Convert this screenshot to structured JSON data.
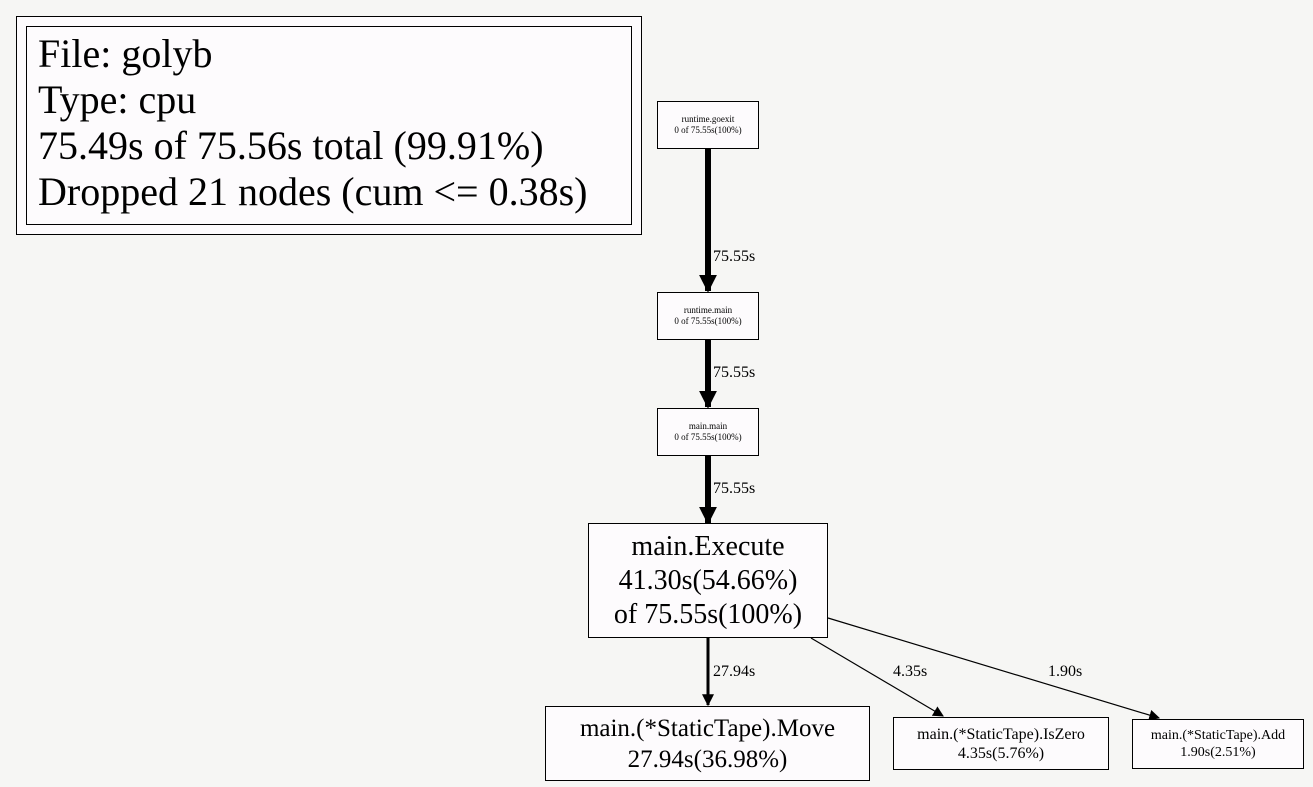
{
  "legend": {
    "file": "File: golyb",
    "type": "Type: cpu",
    "total": "75.49s of 75.56s total (99.91%)",
    "dropped": "Dropped 21 nodes (cum <= 0.38s)"
  },
  "nodes": {
    "goexit": {
      "name": "runtime.goexit",
      "stats": "0 of 75.55s(100%)"
    },
    "runtime_main": {
      "name": "runtime.main",
      "stats": "0 of 75.55s(100%)"
    },
    "main_main": {
      "name": "main.main",
      "stats": "0 of 75.55s(100%)"
    },
    "execute": {
      "name": "main.Execute",
      "flat": "41.30s(54.66%)",
      "cum": "of 75.55s(100%)"
    },
    "move": {
      "name": "main.(*StaticTape).Move",
      "flat": "27.94s(36.98%)"
    },
    "iszero": {
      "name": "main.(*StaticTape).IsZero",
      "flat": "4.35s(5.76%)"
    },
    "add": {
      "name": "main.(*StaticTape).Add",
      "flat": "1.90s(2.51%)"
    }
  },
  "edges": {
    "goexit_to_runtime_main": "75.55s",
    "runtime_main_to_main_main": "75.55s",
    "main_main_to_execute": "75.55s",
    "execute_to_move": "27.94s",
    "execute_to_iszero": "4.35s",
    "execute_to_add": "1.90s"
  }
}
